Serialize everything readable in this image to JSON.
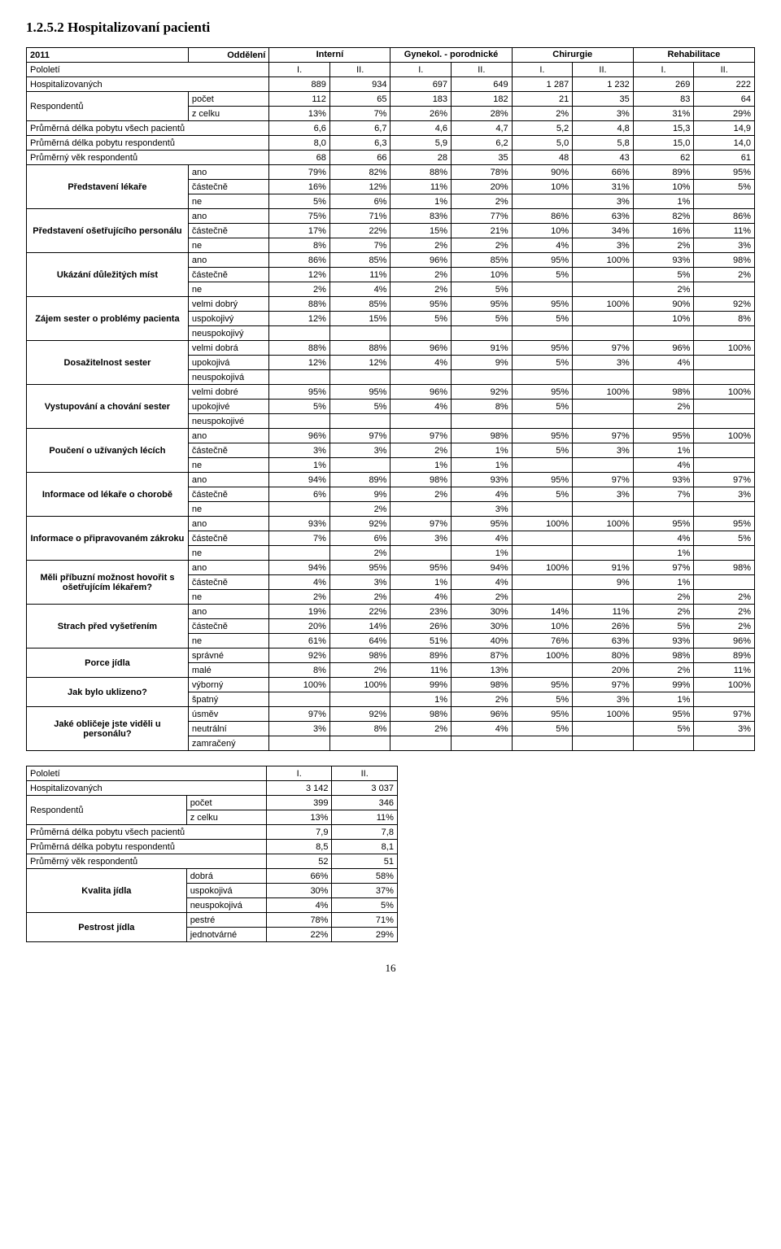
{
  "section_number": "1.2.5.2",
  "section_title": "Hospitalizovaní pacienti",
  "page_number": "16",
  "layout": {
    "col_widths_main": [
      "20%",
      "10%",
      "7.5%",
      "7.5%",
      "7.5%",
      "7.5%",
      "7.5%",
      "7.5%",
      "7.5%",
      "7.5%"
    ],
    "col_widths_summary": [
      "22%",
      "11%",
      "9%",
      "9%"
    ]
  },
  "main": {
    "year": "2011",
    "dept_label": "Oddělení",
    "dept_groups": [
      "Interní",
      "Gynekol. - porodnické",
      "Chirurgie",
      "Rehabilitace"
    ],
    "pololeti_label": "Pololetí",
    "pololeti_cols": [
      "I.",
      "II.",
      "I.",
      "II.",
      "I.",
      "II.",
      "I.",
      "II."
    ],
    "simple_rows": [
      {
        "label": "Hospitalizovaných",
        "sub": "",
        "vals": [
          "889",
          "934",
          "697",
          "649",
          "1 287",
          "1 232",
          "269",
          "222"
        ]
      }
    ],
    "resp_label": "Respondentů",
    "resp_rows": [
      {
        "sub": "počet",
        "vals": [
          "112",
          "65",
          "183",
          "182",
          "21",
          "35",
          "83",
          "64"
        ]
      },
      {
        "sub": "z celku",
        "vals": [
          "13%",
          "7%",
          "26%",
          "28%",
          "2%",
          "3%",
          "31%",
          "29%"
        ]
      }
    ],
    "simple_rows2": [
      {
        "label": "Průměrná délka pobytu všech pacientů",
        "vals": [
          "6,6",
          "6,7",
          "4,6",
          "4,7",
          "5,2",
          "4,8",
          "15,3",
          "14,9"
        ]
      },
      {
        "label": "Průměrná délka pobytu respondentů",
        "vals": [
          "8,0",
          "6,3",
          "5,9",
          "6,2",
          "5,0",
          "5,8",
          "15,0",
          "14,0"
        ]
      },
      {
        "label": "Průměrný věk respondentů",
        "vals": [
          "68",
          "66",
          "28",
          "35",
          "48",
          "43",
          "62",
          "61"
        ]
      }
    ],
    "groups": [
      {
        "label": "Představení lékaře",
        "subs": [
          {
            "sub": "ano",
            "vals": [
              "79%",
              "82%",
              "88%",
              "78%",
              "90%",
              "66%",
              "89%",
              "95%"
            ]
          },
          {
            "sub": "částečně",
            "vals": [
              "16%",
              "12%",
              "11%",
              "20%",
              "10%",
              "31%",
              "10%",
              "5%"
            ]
          },
          {
            "sub": "ne",
            "vals": [
              "5%",
              "6%",
              "1%",
              "2%",
              "",
              "3%",
              "1%",
              ""
            ]
          }
        ]
      },
      {
        "label": "Představení ošetřujícího personálu",
        "subs": [
          {
            "sub": "ano",
            "vals": [
              "75%",
              "71%",
              "83%",
              "77%",
              "86%",
              "63%",
              "82%",
              "86%"
            ]
          },
          {
            "sub": "částečně",
            "vals": [
              "17%",
              "22%",
              "15%",
              "21%",
              "10%",
              "34%",
              "16%",
              "11%"
            ]
          },
          {
            "sub": "ne",
            "vals": [
              "8%",
              "7%",
              "2%",
              "2%",
              "4%",
              "3%",
              "2%",
              "3%"
            ]
          }
        ]
      },
      {
        "label": "Ukázání důležitých míst",
        "subs": [
          {
            "sub": "ano",
            "vals": [
              "86%",
              "85%",
              "96%",
              "85%",
              "95%",
              "100%",
              "93%",
              "98%"
            ]
          },
          {
            "sub": "částečně",
            "vals": [
              "12%",
              "11%",
              "2%",
              "10%",
              "5%",
              "",
              "5%",
              "2%"
            ]
          },
          {
            "sub": "ne",
            "vals": [
              "2%",
              "4%",
              "2%",
              "5%",
              "",
              "",
              "2%",
              ""
            ]
          }
        ]
      },
      {
        "label": "Zájem sester o problémy pacienta",
        "subs": [
          {
            "sub": "velmi dobrý",
            "vals": [
              "88%",
              "85%",
              "95%",
              "95%",
              "95%",
              "100%",
              "90%",
              "92%"
            ]
          },
          {
            "sub": "uspokojivý",
            "vals": [
              "12%",
              "15%",
              "5%",
              "5%",
              "5%",
              "",
              "10%",
              "8%"
            ]
          },
          {
            "sub": "neuspokojivý",
            "vals": [
              "",
              "",
              "",
              "",
              "",
              "",
              "",
              ""
            ]
          }
        ]
      },
      {
        "label": "Dosažitelnost sester",
        "subs": [
          {
            "sub": "velmi dobrá",
            "vals": [
              "88%",
              "88%",
              "96%",
              "91%",
              "95%",
              "97%",
              "96%",
              "100%"
            ]
          },
          {
            "sub": "upokojivá",
            "vals": [
              "12%",
              "12%",
              "4%",
              "9%",
              "5%",
              "3%",
              "4%",
              ""
            ]
          },
          {
            "sub": "neuspokojivá",
            "vals": [
              "",
              "",
              "",
              "",
              "",
              "",
              "",
              ""
            ]
          }
        ]
      },
      {
        "label": "Vystupování a chování sester",
        "subs": [
          {
            "sub": "velmi dobré",
            "vals": [
              "95%",
              "95%",
              "96%",
              "92%",
              "95%",
              "100%",
              "98%",
              "100%"
            ]
          },
          {
            "sub": "upokojivé",
            "vals": [
              "5%",
              "5%",
              "4%",
              "8%",
              "5%",
              "",
              "2%",
              ""
            ]
          },
          {
            "sub": "neuspokojivé",
            "vals": [
              "",
              "",
              "",
              "",
              "",
              "",
              "",
              ""
            ]
          }
        ]
      },
      {
        "label": "Poučení o užívaných lécích",
        "subs": [
          {
            "sub": "ano",
            "vals": [
              "96%",
              "97%",
              "97%",
              "98%",
              "95%",
              "97%",
              "95%",
              "100%"
            ]
          },
          {
            "sub": "částečně",
            "vals": [
              "3%",
              "3%",
              "2%",
              "1%",
              "5%",
              "3%",
              "1%",
              ""
            ]
          },
          {
            "sub": "ne",
            "vals": [
              "1%",
              "",
              "1%",
              "1%",
              "",
              "",
              "4%",
              ""
            ]
          }
        ]
      },
      {
        "label": "Informace od lékaře o chorobě",
        "subs": [
          {
            "sub": "ano",
            "vals": [
              "94%",
              "89%",
              "98%",
              "93%",
              "95%",
              "97%",
              "93%",
              "97%"
            ]
          },
          {
            "sub": "částečně",
            "vals": [
              "6%",
              "9%",
              "2%",
              "4%",
              "5%",
              "3%",
              "7%",
              "3%"
            ]
          },
          {
            "sub": "ne",
            "vals": [
              "",
              "2%",
              "",
              "3%",
              "",
              "",
              "",
              ""
            ]
          }
        ]
      },
      {
        "label": "Informace o připravovaném zákroku",
        "subs": [
          {
            "sub": "ano",
            "vals": [
              "93%",
              "92%",
              "97%",
              "95%",
              "100%",
              "100%",
              "95%",
              "95%"
            ]
          },
          {
            "sub": "částečně",
            "vals": [
              "7%",
              "6%",
              "3%",
              "4%",
              "",
              "",
              "4%",
              "5%"
            ]
          },
          {
            "sub": "ne",
            "vals": [
              "",
              "2%",
              "",
              "1%",
              "",
              "",
              "1%",
              ""
            ]
          }
        ]
      },
      {
        "label": "Měli příbuzní možnost hovořit s ošetřujícím lékařem?",
        "subs": [
          {
            "sub": "ano",
            "vals": [
              "94%",
              "95%",
              "95%",
              "94%",
              "100%",
              "91%",
              "97%",
              "98%"
            ]
          },
          {
            "sub": "částečně",
            "vals": [
              "4%",
              "3%",
              "1%",
              "4%",
              "",
              "9%",
              "1%",
              ""
            ]
          },
          {
            "sub": "ne",
            "vals": [
              "2%",
              "2%",
              "4%",
              "2%",
              "",
              "",
              "2%",
              "2%"
            ]
          }
        ]
      },
      {
        "label": "Strach před vyšetřením",
        "subs": [
          {
            "sub": "ano",
            "vals": [
              "19%",
              "22%",
              "23%",
              "30%",
              "14%",
              "11%",
              "2%",
              "2%"
            ]
          },
          {
            "sub": "částečně",
            "vals": [
              "20%",
              "14%",
              "26%",
              "30%",
              "10%",
              "26%",
              "5%",
              "2%"
            ]
          },
          {
            "sub": "ne",
            "vals": [
              "61%",
              "64%",
              "51%",
              "40%",
              "76%",
              "63%",
              "93%",
              "96%"
            ]
          }
        ]
      },
      {
        "label": "Porce jídla",
        "subs": [
          {
            "sub": "správné",
            "vals": [
              "92%",
              "98%",
              "89%",
              "87%",
              "100%",
              "80%",
              "98%",
              "89%"
            ]
          },
          {
            "sub": "malé",
            "vals": [
              "8%",
              "2%",
              "11%",
              "13%",
              "",
              "20%",
              "2%",
              "11%"
            ]
          }
        ]
      },
      {
        "label": "Jak bylo uklizeno?",
        "subs": [
          {
            "sub": "výborný",
            "vals": [
              "100%",
              "100%",
              "99%",
              "98%",
              "95%",
              "97%",
              "99%",
              "100%"
            ]
          },
          {
            "sub": "špatný",
            "vals": [
              "",
              "",
              "1%",
              "2%",
              "5%",
              "3%",
              "1%",
              ""
            ]
          }
        ]
      },
      {
        "label": "Jaké obličeje jste viděli u personálu?",
        "subs": [
          {
            "sub": "úsměv",
            "vals": [
              "97%",
              "92%",
              "98%",
              "96%",
              "95%",
              "100%",
              "95%",
              "97%"
            ]
          },
          {
            "sub": "neutrální",
            "vals": [
              "3%",
              "8%",
              "2%",
              "4%",
              "5%",
              "",
              "5%",
              "3%"
            ]
          },
          {
            "sub": "zamračený",
            "vals": [
              "",
              "",
              "",
              "",
              "",
              "",
              "",
              ""
            ]
          }
        ]
      }
    ]
  },
  "summary": {
    "pololeti_label": "Pololetí",
    "pololeti_cols": [
      "I.",
      "II."
    ],
    "simple_rows": [
      {
        "label": "Hospitalizovaných",
        "vals": [
          "3 142",
          "3 037"
        ]
      }
    ],
    "resp_label": "Respondentů",
    "resp_rows": [
      {
        "sub": "počet",
        "vals": [
          "399",
          "346"
        ]
      },
      {
        "sub": "z celku",
        "vals": [
          "13%",
          "11%"
        ]
      }
    ],
    "simple_rows2": [
      {
        "label": "Průměrná délka pobytu všech pacientů",
        "vals": [
          "7,9",
          "7,8"
        ]
      },
      {
        "label": "Průměrná délka pobytu respondentů",
        "vals": [
          "8,5",
          "8,1"
        ]
      },
      {
        "label": "Průměrný věk respondentů",
        "vals": [
          "52",
          "51"
        ]
      }
    ],
    "groups": [
      {
        "label": "Kvalita jídla",
        "subs": [
          {
            "sub": "dobrá",
            "vals": [
              "66%",
              "58%"
            ]
          },
          {
            "sub": "uspokojivá",
            "vals": [
              "30%",
              "37%"
            ]
          },
          {
            "sub": "neuspokojivá",
            "vals": [
              "4%",
              "5%"
            ]
          }
        ]
      },
      {
        "label": "Pestrost jídla",
        "subs": [
          {
            "sub": "pestré",
            "vals": [
              "78%",
              "71%"
            ]
          },
          {
            "sub": "jednotvárné",
            "vals": [
              "22%",
              "29%"
            ]
          }
        ]
      }
    ]
  }
}
